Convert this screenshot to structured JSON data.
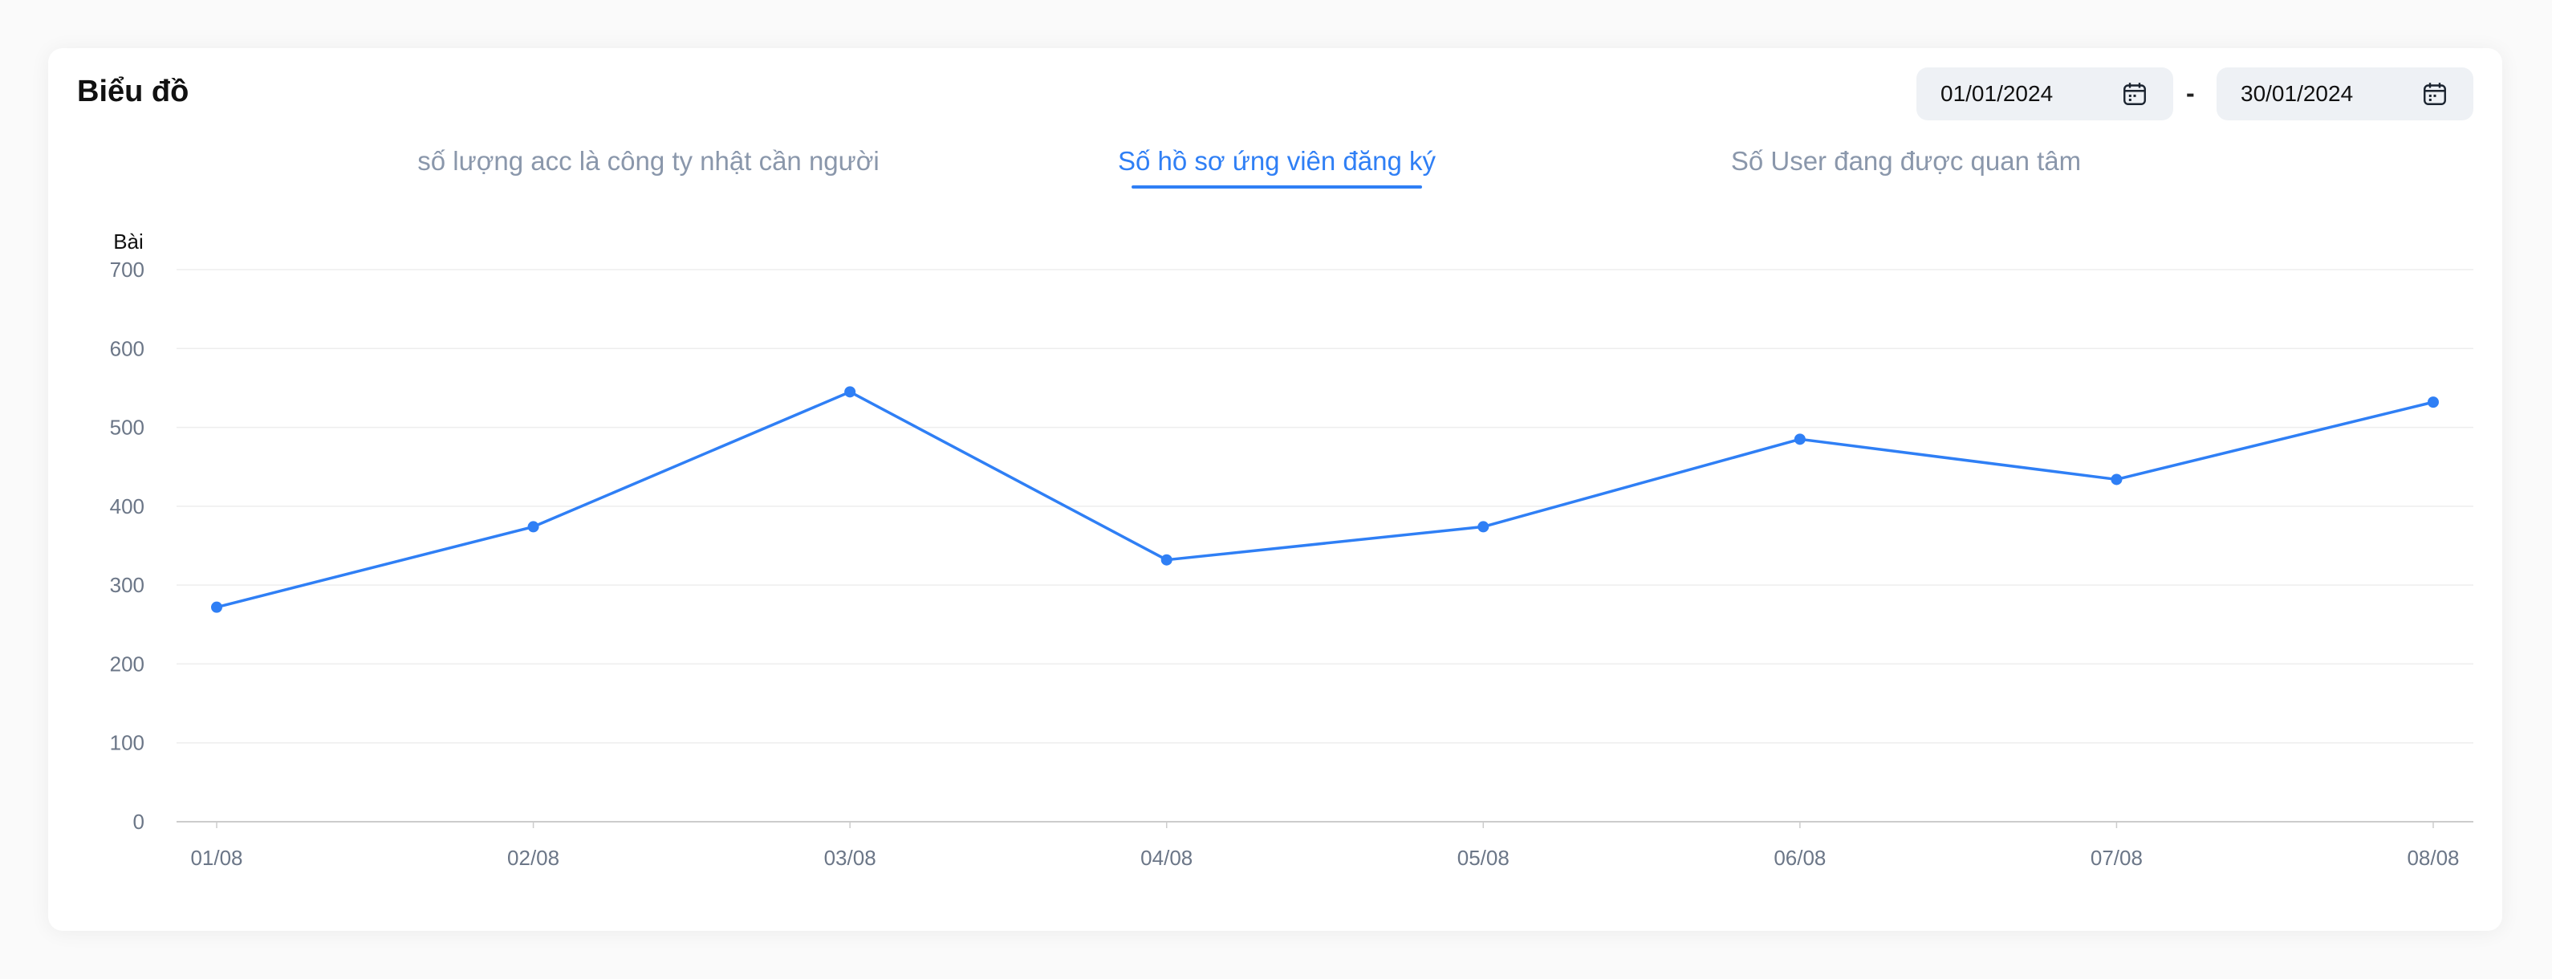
{
  "header": {
    "title": "Biểu đồ",
    "date_start": "01/01/2024",
    "date_separator": "-",
    "date_end": "30/01/2024",
    "calendar_icon": "calendar-icon"
  },
  "tabs": [
    {
      "label": "số lượng acc là công ty nhật cần người",
      "active": false
    },
    {
      "label": "Số hồ sơ ứng viên đăng ký",
      "active": true
    },
    {
      "label": "Số User đang được quan tâm",
      "active": false
    }
  ],
  "colors": {
    "accent": "#2f7ff5",
    "muted_text": "#8a97ab",
    "grid": "#eeeeee",
    "axis": "#cccccc"
  },
  "chart_data": {
    "type": "line",
    "title": "",
    "xlabel": "",
    "ylabel": "Bài",
    "categories": [
      "01/08",
      "02/08",
      "03/08",
      "04/08",
      "05/08",
      "06/08",
      "07/08",
      "08/08"
    ],
    "series": [
      {
        "values": [
          272,
          374,
          545,
          332,
          374,
          485,
          434,
          532
        ]
      }
    ],
    "ylim": [
      0,
      700
    ],
    "yticks": [
      0,
      100,
      200,
      300,
      400,
      500,
      600,
      700
    ],
    "grid": true,
    "legend": "none"
  }
}
